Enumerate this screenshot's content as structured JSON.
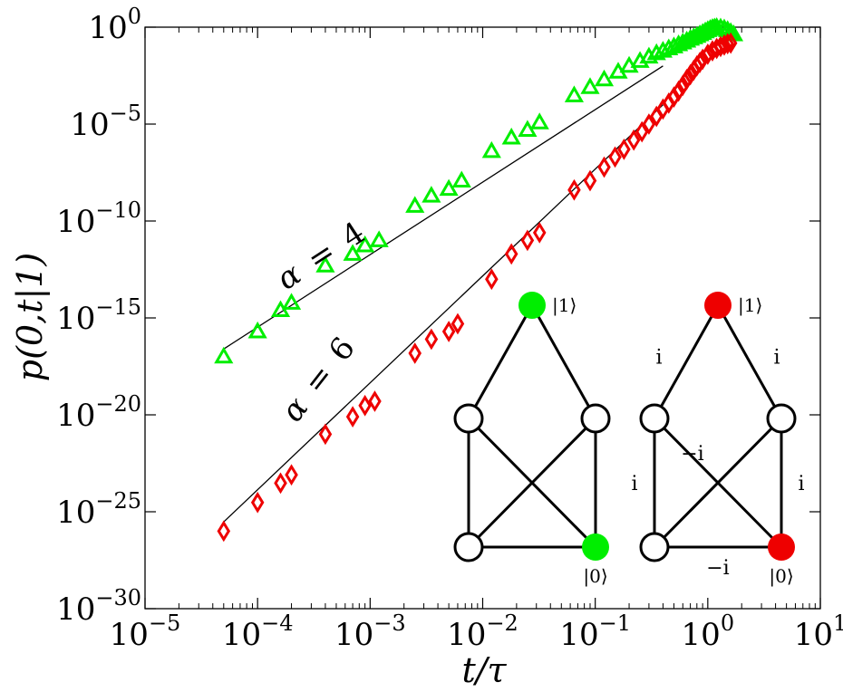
{
  "colors": {
    "alpha4_series": "#00ee00",
    "alpha6_series": "#ee0000",
    "fit_line": "#000000",
    "node_plain": "#ffffff",
    "node_edge": "#000000"
  },
  "chart_data": {
    "type": "scatter",
    "xscale": "log",
    "yscale": "log",
    "xlim": [
      1e-05,
      10
    ],
    "ylim": [
      1e-30,
      1
    ],
    "grid": false,
    "legend": "none",
    "xlabel": "t/τ",
    "ylabel": "p(0,t|1)",
    "xticks": [
      {
        "base": "10",
        "exp": "−5",
        "value": 1e-05
      },
      {
        "base": "10",
        "exp": "−4",
        "value": 0.0001
      },
      {
        "base": "10",
        "exp": "−3",
        "value": 0.001
      },
      {
        "base": "10",
        "exp": "−2",
        "value": 0.01
      },
      {
        "base": "10",
        "exp": "−1",
        "value": 0.1
      },
      {
        "base": "10",
        "exp": "0",
        "value": 1
      },
      {
        "base": "10",
        "exp": "1",
        "value": 10
      }
    ],
    "yticks": [
      {
        "base": "10",
        "exp": "0",
        "value": 1
      },
      {
        "base": "10",
        "exp": "−5",
        "value": 1e-05
      },
      {
        "base": "10",
        "exp": "−10",
        "value": 1e-10
      },
      {
        "base": "10",
        "exp": "−15",
        "value": 1e-15
      },
      {
        "base": "10",
        "exp": "−20",
        "value": 1e-20
      },
      {
        "base": "10",
        "exp": "−25",
        "value": 1e-25
      },
      {
        "base": "10",
        "exp": "−30",
        "value": 1e-30
      }
    ],
    "series": [
      {
        "marker": "triangle",
        "color": "#00ee00",
        "x": [
          5e-05,
          0.0001,
          0.00016,
          0.0002,
          0.0004,
          0.0007,
          0.0009,
          0.0012,
          0.0025,
          0.0035,
          0.005,
          0.0065,
          0.012,
          0.018,
          0.025,
          0.032,
          0.065,
          0.09,
          0.12,
          0.16,
          0.2,
          0.25,
          0.3,
          0.35,
          0.4,
          0.45,
          0.5,
          0.55,
          0.6,
          0.65,
          0.7,
          0.75,
          0.8,
          0.85,
          0.9,
          0.95,
          1.0,
          1.05,
          1.1,
          1.15,
          1.2,
          1.3,
          1.4,
          1.5,
          1.6,
          1.7
        ],
        "y": [
          1e-17,
          2e-16,
          2.5e-15,
          6e-15,
          5e-13,
          2e-12,
          5.5e-12,
          1e-11,
          6e-10,
          2e-09,
          4.5e-09,
          1.2e-08,
          4e-07,
          2e-06,
          5e-06,
          1.2e-05,
          0.0003,
          0.0008,
          0.002,
          0.005,
          0.01,
          0.018,
          0.03,
          0.045,
          0.06,
          0.08,
          0.1,
          0.13,
          0.16,
          0.2,
          0.25,
          0.3,
          0.35,
          0.42,
          0.5,
          0.6,
          0.7,
          0.8,
          0.9,
          0.95,
          1.0,
          0.95,
          0.85,
          0.7,
          0.55,
          0.42
        ]
      },
      {
        "marker": "diamond",
        "color": "#ee0000",
        "x": [
          5e-05,
          0.0001,
          0.00016,
          0.0002,
          0.0004,
          0.0007,
          0.0009,
          0.0011,
          0.0025,
          0.0035,
          0.005,
          0.006,
          0.012,
          0.018,
          0.025,
          0.032,
          0.065,
          0.09,
          0.12,
          0.15,
          0.18,
          0.22,
          0.26,
          0.3,
          0.35,
          0.4,
          0.45,
          0.5,
          0.55,
          0.6,
          0.65,
          0.7,
          0.75,
          0.8,
          0.85,
          0.9,
          1.0,
          1.1,
          1.2,
          1.3,
          1.4,
          1.5,
          1.6
        ],
        "y": [
          1e-26,
          3e-25,
          3e-24,
          8e-24,
          1e-21,
          8e-21,
          3e-20,
          5e-20,
          1.5e-17,
          8e-17,
          2e-16,
          5e-16,
          1e-13,
          2e-12,
          1e-11,
          2.5e-11,
          4e-09,
          1.2e-08,
          6e-08,
          2e-07,
          5e-07,
          1.5e-06,
          4e-06,
          1e-05,
          2.5e-05,
          6e-05,
          0.00012,
          0.00025,
          0.0005,
          0.001,
          0.002,
          0.0035,
          0.006,
          0.01,
          0.015,
          0.022,
          0.04,
          0.06,
          0.08,
          0.1,
          0.12,
          0.14,
          0.15
        ]
      }
    ],
    "fit_lines": [
      {
        "x": [
          5e-05,
          0.4
        ],
        "y": [
          2.5e-17,
          0.01
        ]
      },
      {
        "x": [
          5e-05,
          0.4
        ],
        "y": [
          3e-26,
          0.0001
        ]
      }
    ],
    "annotations": [
      {
        "lhs": "α",
        "eq": "=",
        "rhs": "4"
      },
      {
        "lhs": "α",
        "eq": "=",
        "rhs": "6"
      }
    ],
    "insets": [
      {
        "edges": [
          {
            "from": "top",
            "to": "ml",
            "label": ""
          },
          {
            "from": "top",
            "to": "mr",
            "label": ""
          },
          {
            "from": "ml",
            "to": "bl",
            "label": ""
          },
          {
            "from": "mr",
            "to": "br",
            "label": ""
          },
          {
            "from": "ml",
            "to": "br",
            "label": ""
          },
          {
            "from": "mr",
            "to": "bl",
            "label": ""
          },
          {
            "from": "bl",
            "to": "br",
            "label": ""
          }
        ],
        "nodes": [
          {
            "id": "top",
            "fill": "#00ee00",
            "label": "|1⟩"
          },
          {
            "id": "ml",
            "fill": "#ffffff",
            "label": ""
          },
          {
            "id": "mr",
            "fill": "#ffffff",
            "label": ""
          },
          {
            "id": "bl",
            "fill": "#ffffff",
            "label": ""
          },
          {
            "id": "br",
            "fill": "#00ee00",
            "label": "|0⟩"
          }
        ]
      },
      {
        "edges": [
          {
            "from": "top",
            "to": "ml",
            "label": "i"
          },
          {
            "from": "top",
            "to": "mr",
            "label": "i"
          },
          {
            "from": "ml",
            "to": "bl",
            "label": "i"
          },
          {
            "from": "mr",
            "to": "br",
            "label": "i"
          },
          {
            "from": "ml",
            "to": "br",
            "label": "−i"
          },
          {
            "from": "mr",
            "to": "bl",
            "label": ""
          },
          {
            "from": "bl",
            "to": "br",
            "label": "−i"
          }
        ],
        "nodes": [
          {
            "id": "top",
            "fill": "#ee0000",
            "label": "|1⟩"
          },
          {
            "id": "ml",
            "fill": "#ffffff",
            "label": ""
          },
          {
            "id": "mr",
            "fill": "#ffffff",
            "label": ""
          },
          {
            "id": "bl",
            "fill": "#ffffff",
            "label": ""
          },
          {
            "id": "br",
            "fill": "#ee0000",
            "label": "|0⟩"
          }
        ]
      }
    ]
  }
}
